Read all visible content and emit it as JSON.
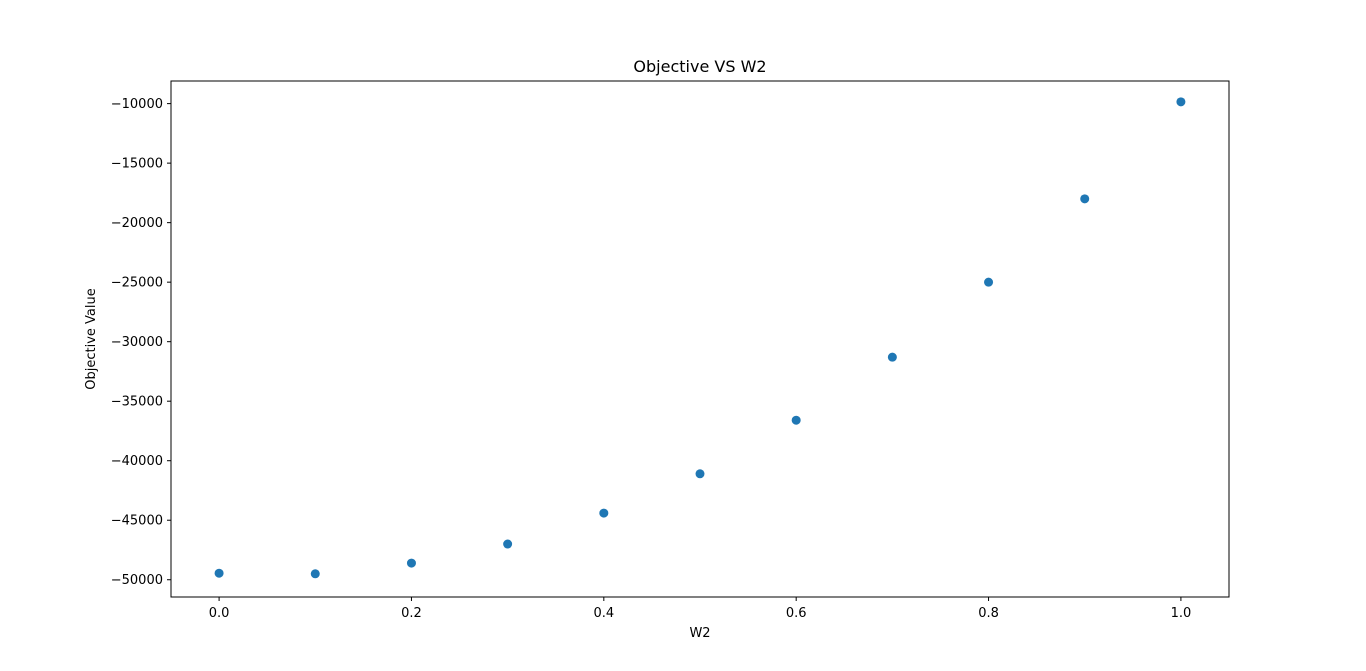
{
  "chart_data": {
    "type": "scatter",
    "title": "Objective VS W2",
    "xlabel": "W2",
    "ylabel": "Objective Value",
    "x": [
      0.0,
      0.1,
      0.2,
      0.3,
      0.4,
      0.5,
      0.6,
      0.7,
      0.8,
      0.9,
      1.0
    ],
    "y": [
      -49450,
      -49500,
      -48600,
      -47000,
      -44400,
      -41100,
      -36600,
      -31300,
      -25000,
      -18000,
      -9850
    ],
    "xlim": [
      -0.05,
      1.05
    ],
    "ylim": [
      -51450,
      -8100
    ],
    "xticks": [
      0.0,
      0.2,
      0.4,
      0.6,
      0.8,
      1.0
    ],
    "xtick_labels": [
      "0.0",
      "0.2",
      "0.4",
      "0.6",
      "0.8",
      "1.0"
    ],
    "yticks": [
      -10000,
      -15000,
      -20000,
      -25000,
      -30000,
      -35000,
      -40000,
      -45000,
      -50000
    ],
    "ytick_labels": [
      "−10000",
      "−15000",
      "−20000",
      "−25000",
      "−30000",
      "−35000",
      "−40000",
      "−45000",
      "−50000"
    ],
    "marker_color": "#1f77b4",
    "grid": false,
    "legend": "none"
  }
}
